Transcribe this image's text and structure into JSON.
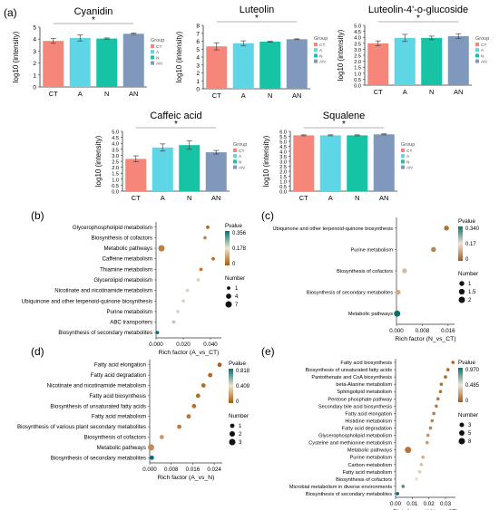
{
  "panel_labels": [
    "(a)",
    "(b)",
    "(c)",
    "(d)",
    "(e)"
  ],
  "colors": {
    "CT": "#f7867a",
    "A": "#5fd6e6",
    "N": "#17c3a5",
    "AN": "#7f98bc",
    "p_low": "#a9580f",
    "p_mid": "#ede6cf",
    "p_high": "#0b6f6d"
  },
  "chart_data": [
    {
      "type": "bar",
      "panel": "a",
      "title": "Cyanidin",
      "categories": [
        "CT",
        "A",
        "N",
        "AN"
      ],
      "values": [
        3.85,
        4.1,
        4.05,
        4.45
      ],
      "errors": [
        0.2,
        0.25,
        0.05,
        0.05
      ],
      "ylabel": "log10 (intensity)",
      "ylim": [
        0,
        5
      ],
      "yticks": [
        "0",
        "1",
        "2",
        "3",
        "4",
        "5"
      ],
      "significance": "*",
      "legend": {
        "title": "Group",
        "entries": [
          "CT",
          "A",
          "N",
          "AN"
        ]
      }
    },
    {
      "type": "bar",
      "panel": "a",
      "title": "Luteolin",
      "categories": [
        "CT",
        "A",
        "N",
        "AN"
      ],
      "values": [
        5.35,
        5.75,
        5.95,
        6.25
      ],
      "errors": [
        0.45,
        0.3,
        0.05,
        0.05
      ],
      "ylabel": "log10 (intensity)",
      "ylim": [
        0,
        8
      ],
      "yticks": [
        "0",
        "1",
        "2",
        "3",
        "4",
        "5",
        "6",
        "7",
        "8"
      ],
      "significance": "*",
      "legend": {
        "title": "Group",
        "entries": [
          "CT",
          "A",
          "N",
          "AN"
        ]
      }
    },
    {
      "type": "bar",
      "panel": "a",
      "title": "Luteolin-4'-o-glucoside",
      "categories": [
        "CT",
        "A",
        "N",
        "AN"
      ],
      "values": [
        3.5,
        3.95,
        3.95,
        4.1
      ],
      "errors": [
        0.2,
        0.3,
        0.15,
        0.2
      ],
      "ylabel": "log10 (intensity)",
      "ylim": [
        0,
        5
      ],
      "yticks": [
        "0.0",
        "0.5",
        "1.0",
        "1.5",
        "2.0",
        "2.5",
        "3.0",
        "3.5",
        "4.0",
        "4.5",
        "5.0"
      ],
      "significance": "*",
      "legend": {
        "title": "Group",
        "entries": [
          "CT",
          "A",
          "N",
          "AN"
        ]
      }
    },
    {
      "type": "bar",
      "panel": "a",
      "title": "Caffeic acid",
      "categories": [
        "CT",
        "A",
        "N",
        "AN"
      ],
      "values": [
        2.7,
        3.65,
        3.85,
        3.25
      ],
      "errors": [
        0.25,
        0.3,
        0.35,
        0.15
      ],
      "ylabel": "log10 (intensity)",
      "ylim": [
        0,
        5
      ],
      "yticks": [
        "0.0",
        "0.5",
        "1.0",
        "1.5",
        "2.0",
        "2.5",
        "3.0",
        "3.5",
        "4.0",
        "4.5",
        "5.0"
      ],
      "significance": "*",
      "legend": {
        "title": "Group",
        "entries": [
          "CT",
          "A",
          "N",
          "AN"
        ]
      }
    },
    {
      "type": "bar",
      "panel": "a",
      "title": "Squalene",
      "categories": [
        "CT",
        "A",
        "N",
        "AN"
      ],
      "values": [
        5.6,
        5.6,
        5.6,
        5.7
      ],
      "errors": [
        0.05,
        0.05,
        0.05,
        0.05
      ],
      "ylabel": "log10 (intensity)",
      "ylim": [
        0,
        6
      ],
      "yticks": [
        "0.0",
        "0.5",
        "1.0",
        "1.5",
        "2.0",
        "2.5",
        "3.0",
        "3.5",
        "4.0",
        "4.5",
        "5.0",
        "5.5",
        "6.0"
      ],
      "significance": "*",
      "legend": {
        "title": "Group",
        "entries": [
          "CT",
          "A",
          "N",
          "AN"
        ]
      }
    },
    {
      "type": "scatter",
      "panel": "b",
      "xlabel": "Rich factor (A_vs_CT)",
      "xlim": [
        0,
        0.048
      ],
      "xticks": [
        0,
        0.02,
        0.04
      ],
      "xtick_labels": [
        "0.000",
        "0.020",
        "0.040"
      ],
      "pvalue_range": [
        0,
        0.356
      ],
      "pvalue_ticks": [
        "0.356",
        "0.178",
        "0"
      ],
      "number_legend": [
        1,
        4,
        7
      ],
      "number_max": 7,
      "categories": [
        "Glycerophospholipid metabolism",
        "Biosynthesis of cofactors",
        "Metabolic pathways",
        "Caffeine metabolism",
        "Thiamine metabolism",
        "Glycerolipid metabolism",
        "Nicotinate and nicotinamide metabolism",
        "Ubiquinone and other terpenoid-quinone biosynthesis",
        "Purine metabolism",
        "ABC transporters",
        "Biosynthesis of secondary metabolites"
      ],
      "x": [
        0.038,
        0.036,
        0.004,
        0.042,
        0.033,
        0.031,
        0.023,
        0.02,
        0.016,
        0.013,
        0.001
      ],
      "number": [
        1,
        1,
        7,
        1,
        1,
        1,
        1,
        1,
        1,
        1,
        1
      ],
      "pvalue": [
        0.02,
        0.06,
        0.05,
        0.03,
        0.04,
        0.15,
        0.2,
        0.2,
        0.2,
        0.22,
        0.356
      ]
    },
    {
      "type": "scatter",
      "panel": "c",
      "xlabel": "Rich factor (N_vs_CT)",
      "xlim": [
        0,
        0.018
      ],
      "xticks": [
        0,
        0.008,
        0.016
      ],
      "xtick_labels": [
        "0.000",
        "0.008",
        "0.016"
      ],
      "pvalue_range": [
        0,
        0.34
      ],
      "pvalue_ticks": [
        "0.340",
        "0.17",
        "0"
      ],
      "number_legend": [
        1,
        1.5,
        2
      ],
      "number_max": 2,
      "categories": [
        "Ubiquinone and other terpenoid-quinone biosynthesis",
        "Purine metabolism",
        "Biosynthesis of cofactors",
        "Biosynthesis of secondary metabolites",
        "Metabolic pathways"
      ],
      "x": [
        0.0155,
        0.0115,
        0.0025,
        0.0005,
        0.0002
      ],
      "number": [
        1,
        1,
        1,
        1,
        2
      ],
      "pvalue": [
        0.03,
        0.05,
        0.12,
        0.1,
        0.34
      ]
    },
    {
      "type": "scatter",
      "panel": "d",
      "xlabel": "Rich factor (A_vs_N)",
      "xlim": [
        0,
        0.027
      ],
      "xticks": [
        0,
        0.008,
        0.016,
        0.024
      ],
      "xtick_labels": [
        "0.000",
        "0.008",
        "0.016",
        "0.024"
      ],
      "pvalue_range": [
        0,
        0.818
      ],
      "pvalue_ticks": [
        "0.818",
        "0.409",
        "0"
      ],
      "number_legend": [
        1,
        2,
        3
      ],
      "number_max": 3,
      "categories": [
        "Fatty acid elongation",
        "Fatty acid degradation",
        "Nicotinate and nicotinamide metabolism",
        "Fatty acid biosynthesis",
        "Biosynthesis of unsaturated fatty acids",
        "Fatty acid metabolism",
        "Biosynthesis of various plant secondary metabolites",
        "Biosynthesis of cofactors",
        "Metabolic pathways",
        "Biosynthesis of secondary metabolites"
      ],
      "x": [
        0.026,
        0.0225,
        0.02,
        0.018,
        0.0165,
        0.0145,
        0.011,
        0.0045,
        0.0005,
        0.0008
      ],
      "number": [
        1,
        1,
        1,
        1,
        1,
        1,
        1,
        1,
        3,
        1
      ],
      "pvalue": [
        0.02,
        0.05,
        0.06,
        0.06,
        0.07,
        0.08,
        0.1,
        0.2,
        0.15,
        0.818
      ]
    },
    {
      "type": "scatter",
      "panel": "e",
      "xlabel": "Rich factor (AN_vs_CT)",
      "xlim": [
        0,
        0.036
      ],
      "xticks": [
        0,
        0.01,
        0.02,
        0.03
      ],
      "xtick_labels": [
        "0.00",
        "0.01",
        "0.02",
        "0.03"
      ],
      "pvalue_range": [
        0,
        0.97
      ],
      "pvalue_ticks": [
        "0.970",
        "0.485",
        "0"
      ],
      "number_legend": [
        3,
        5,
        8
      ],
      "number_max": 8,
      "categories": [
        "Fatty acid biosynthesis",
        "Biosynthesis of unsaturated fatty acids",
        "Pantothenate and CoA biosynthesis",
        "beta-Alanine metabolism",
        "Sphingolipid metabolism",
        "Pentose phosphate pathway",
        "Secondary bile acid biosynthesis",
        "Fatty acid elongation",
        "Histidine metabolism",
        "Fatty acid degradation",
        "Glycerophospholipid metabolism",
        "Cysteine and methionine metabolism",
        "Metabolic pathways",
        "Purine metabolism",
        "Carbon metabolism",
        "Fatty acid metabolism",
        "Biosynthesis of cofactors",
        "Microbial metabolism in diverse environments",
        "Biosynthesis of secondary metabolites"
      ],
      "x": [
        0.0345,
        0.0315,
        0.03,
        0.0275,
        0.027,
        0.0255,
        0.0245,
        0.023,
        0.022,
        0.021,
        0.0195,
        0.019,
        0.0075,
        0.0165,
        0.0155,
        0.0145,
        0.0125,
        0.0045,
        0.0012
      ],
      "number": [
        1,
        1,
        1,
        1,
        1,
        1,
        1,
        1,
        1,
        1,
        1,
        1,
        8,
        1,
        1,
        1,
        1,
        1,
        1
      ],
      "pvalue": [
        0.05,
        0.05,
        0.06,
        0.07,
        0.08,
        0.1,
        0.12,
        0.12,
        0.15,
        0.15,
        0.2,
        0.22,
        0.1,
        0.3,
        0.35,
        0.4,
        0.5,
        0.85,
        0.97
      ]
    }
  ]
}
